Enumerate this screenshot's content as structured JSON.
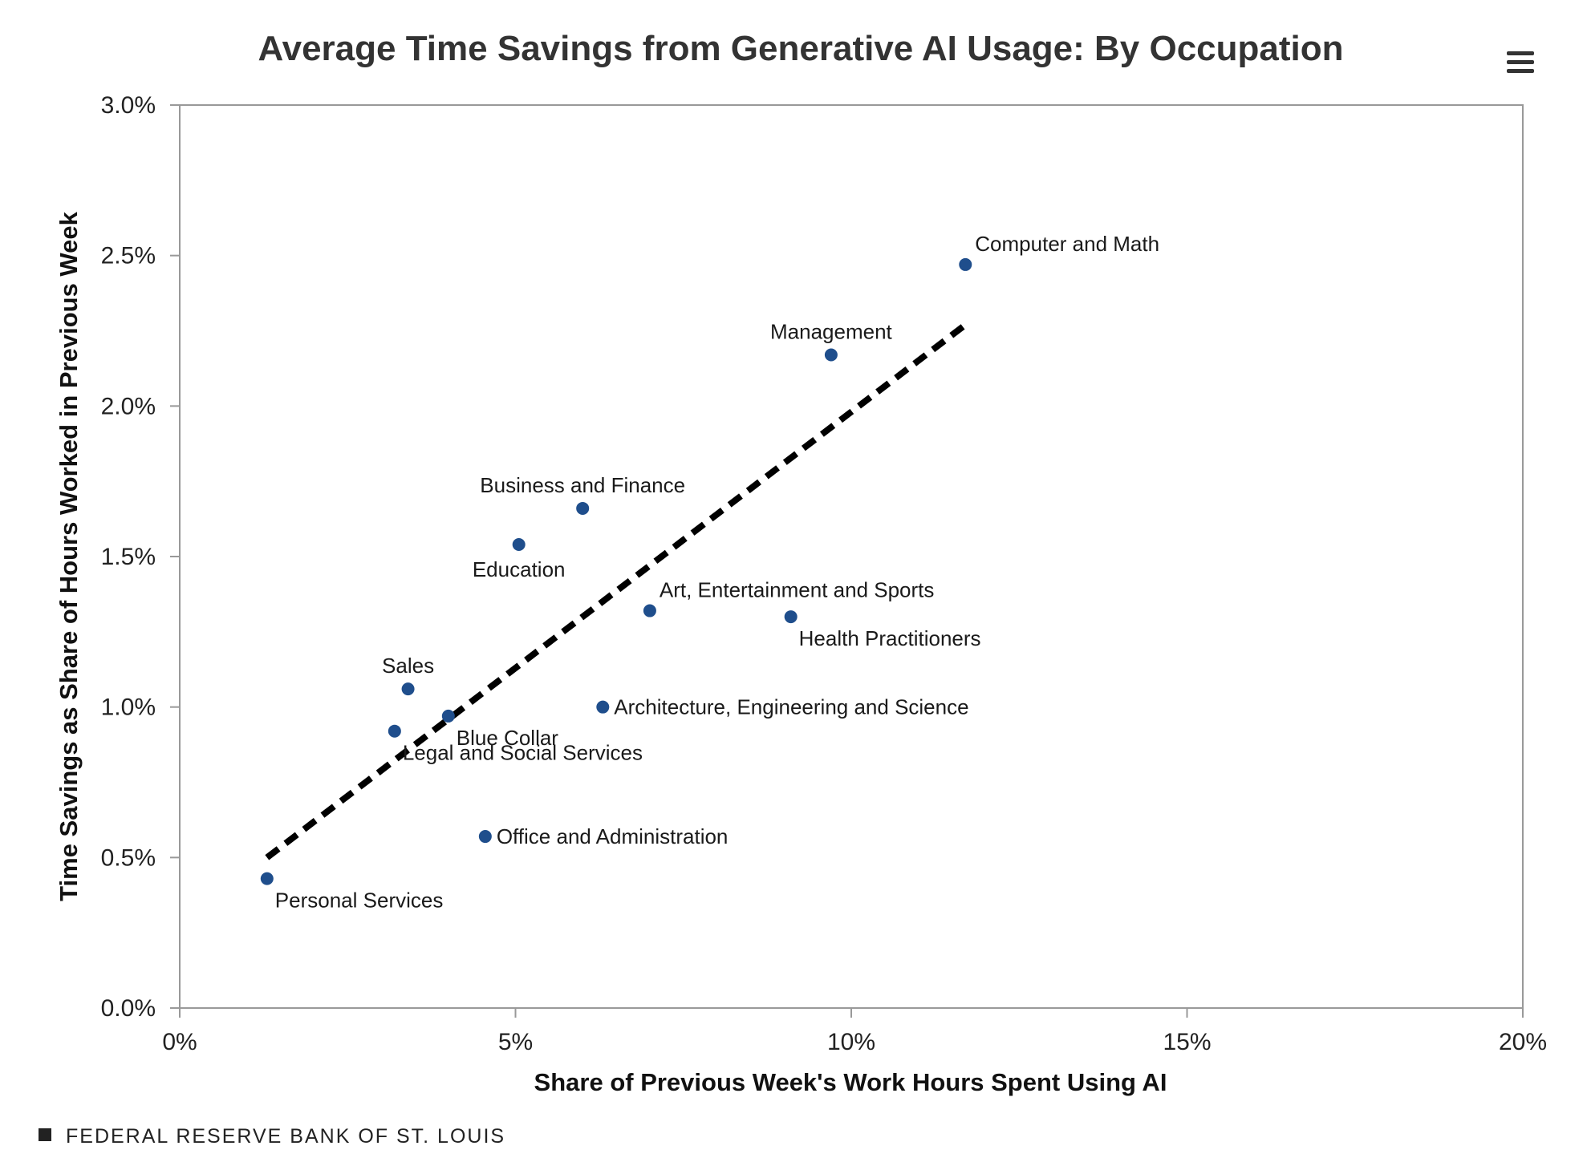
{
  "chart_data": {
    "type": "scatter",
    "title": "Average Time Savings from Generative AI Usage: By Occupation",
    "xlabel": "Share of Previous Week's Work Hours Spent Using AI",
    "ylabel": "Time Savings as Share of Hours Worked in Previous Week",
    "xlim": [
      0,
      20
    ],
    "ylim": [
      0,
      3
    ],
    "x_ticks": [
      0,
      5,
      10,
      15,
      20
    ],
    "x_tick_labels": [
      "0%",
      "5%",
      "10%",
      "15%",
      "20%"
    ],
    "y_ticks": [
      0,
      0.5,
      1,
      1.5,
      2,
      2.5,
      3
    ],
    "y_tick_labels": [
      "0.0%",
      "0.5%",
      "1.0%",
      "1.5%",
      "2.0%",
      "2.5%",
      "3.0%"
    ],
    "grid": false,
    "point_color": "#1f4e8c",
    "series": [
      {
        "name": "Occupations",
        "points": [
          {
            "label": "Computer and Math",
            "x": 11.7,
            "y": 2.47,
            "label_pos": "above-right"
          },
          {
            "label": "Management",
            "x": 9.7,
            "y": 2.17,
            "label_pos": "above"
          },
          {
            "label": "Business and Finance",
            "x": 6.0,
            "y": 1.66,
            "label_pos": "above"
          },
          {
            "label": "Education",
            "x": 5.05,
            "y": 1.54,
            "label_pos": "below"
          },
          {
            "label": "Art, Entertainment and Sports",
            "x": 7.0,
            "y": 1.32,
            "label_pos": "above-right"
          },
          {
            "label": "Health Practitioners",
            "x": 9.1,
            "y": 1.3,
            "label_pos": "below-right"
          },
          {
            "label": "Sales",
            "x": 3.4,
            "y": 1.06,
            "label_pos": "above"
          },
          {
            "label": "Architecture, Engineering and Science",
            "x": 6.3,
            "y": 1.0,
            "label_pos": "right"
          },
          {
            "label": "Blue Collar",
            "x": 4.0,
            "y": 0.97,
            "label_pos": "below-right"
          },
          {
            "label": "Legal and Social Services",
            "x": 3.2,
            "y": 0.92,
            "label_pos": "below-right"
          },
          {
            "label": "Office and Administration",
            "x": 4.55,
            "y": 0.57,
            "label_pos": "right"
          },
          {
            "label": "Personal Services",
            "x": 1.3,
            "y": 0.43,
            "label_pos": "below-right"
          }
        ]
      }
    ],
    "trendline": {
      "style": "dashed",
      "color": "#000000",
      "x": [
        1.3,
        11.7
      ],
      "y": [
        0.5,
        2.27
      ]
    }
  },
  "footer": {
    "source": "FEDERAL RESERVE BANK OF ST. LOUIS"
  },
  "menu": {
    "icon": "hamburger-menu-icon"
  }
}
